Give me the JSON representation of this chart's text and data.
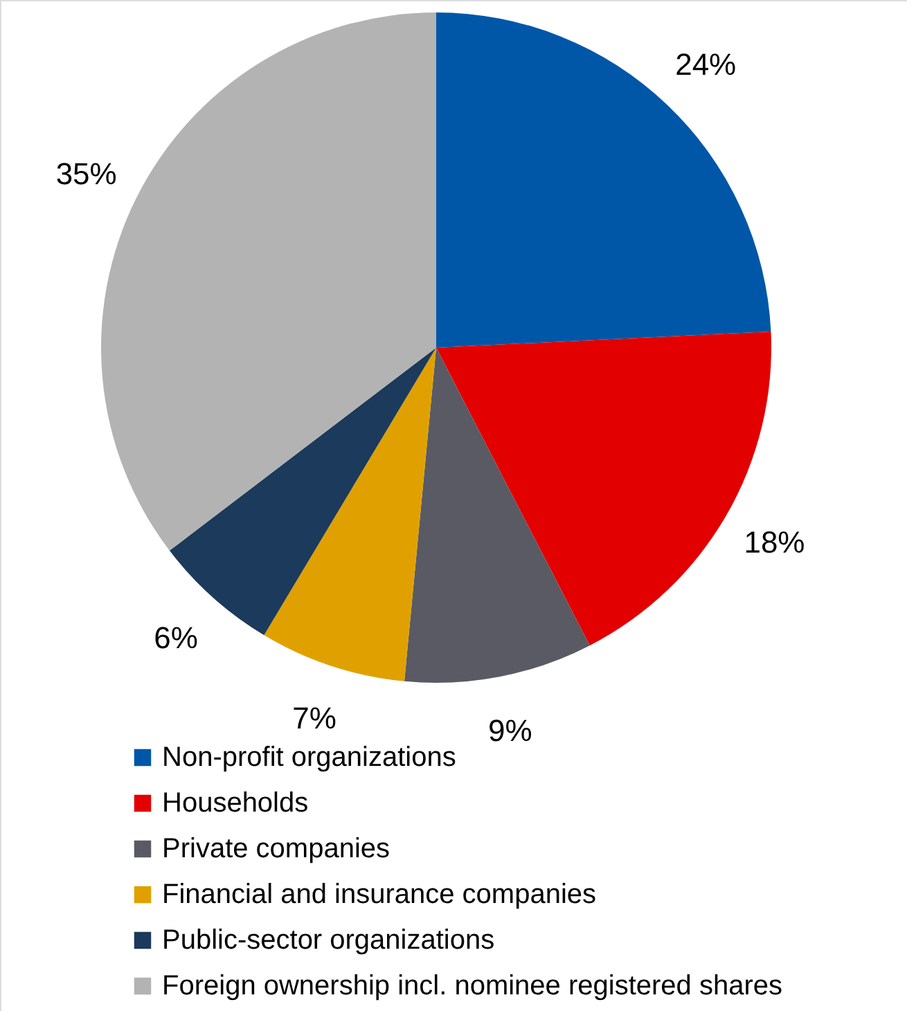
{
  "chart_data": {
    "type": "pie",
    "categories": [
      "Non-profit organizations",
      "Households",
      "Private companies",
      "Financial and insurance companies",
      "Public-sector organizations",
      "Foreign ownership incl. nominee registered shares"
    ],
    "values": [
      24,
      18,
      9,
      7,
      6,
      35
    ],
    "colors": [
      "#0057a8",
      "#e30000",
      "#595a63",
      "#e0a100",
      "#1b3a5c",
      "#b3b3b3"
    ],
    "value_labels": [
      "24%",
      "18%",
      "9%",
      "7%",
      "6%",
      "35%"
    ],
    "legend": "bottom"
  }
}
